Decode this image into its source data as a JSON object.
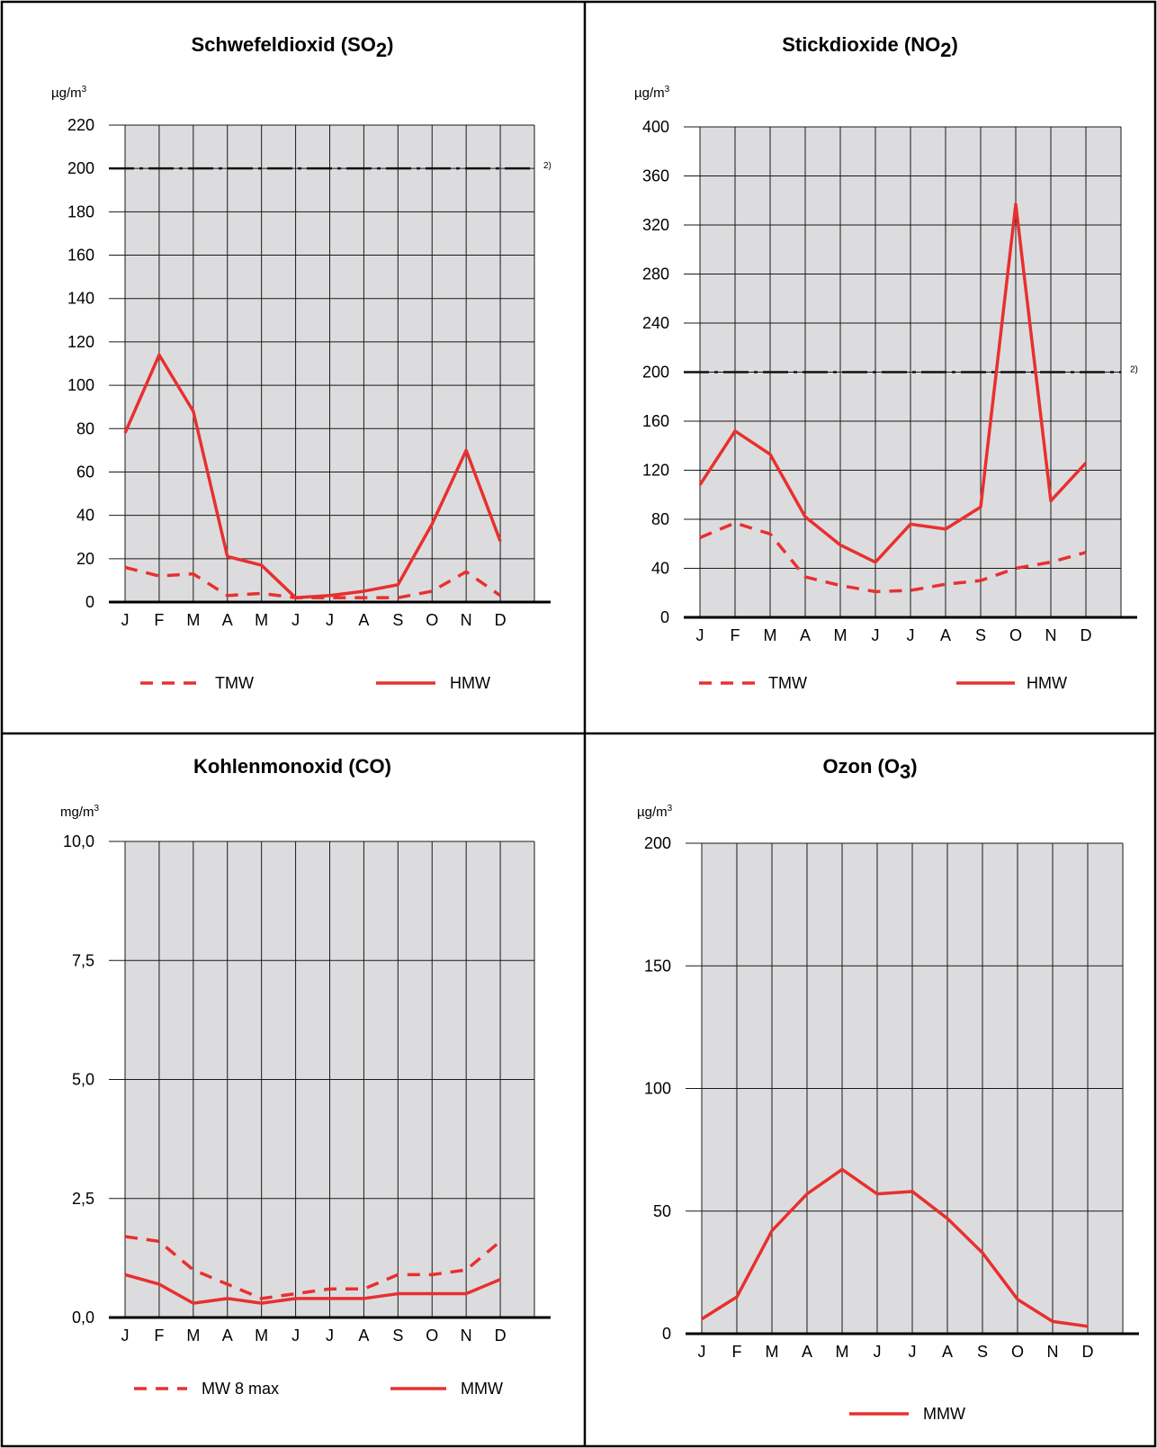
{
  "colors": {
    "series": "#e8302f",
    "plot_background": "#dcdcde",
    "gridline": "#1a1a1a",
    "limit_line": "#111111",
    "border": "#000000"
  },
  "chart_data": [
    {
      "type": "line",
      "title": {
        "main": "Schwefeldioxid (SO",
        "sub": "2",
        "close": ")"
      },
      "unit": {
        "base": "µg/m",
        "sup": "3"
      },
      "categories": [
        "J",
        "F",
        "M",
        "A",
        "M",
        "J",
        "J",
        "A",
        "S",
        "O",
        "N",
        "D"
      ],
      "ylim": [
        0,
        220
      ],
      "yticks": [
        0,
        20,
        40,
        60,
        80,
        100,
        120,
        140,
        160,
        180,
        200,
        220
      ],
      "ytick_labels": [
        "0",
        "20",
        "40",
        "60",
        "80",
        "100",
        "120",
        "140",
        "160",
        "180",
        "200",
        "220"
      ],
      "limit": {
        "value": 200,
        "label": "2)"
      },
      "series": [
        {
          "name": "TMW",
          "style": "dashed",
          "values": [
            16,
            12,
            13,
            3,
            4,
            2,
            2,
            2,
            2,
            5,
            14,
            3
          ]
        },
        {
          "name": "HMW",
          "style": "solid",
          "values": [
            78,
            114,
            88,
            21,
            17,
            2,
            3,
            5,
            8,
            36,
            70,
            28
          ]
        }
      ],
      "legend": {
        "placement": "bottom"
      },
      "grid": true
    },
    {
      "type": "line",
      "title": {
        "main": "Stickdioxide (NO",
        "sub": "2",
        "close": ")"
      },
      "unit": {
        "base": "µg/m",
        "sup": "3"
      },
      "categories": [
        "J",
        "F",
        "M",
        "A",
        "M",
        "J",
        "J",
        "A",
        "S",
        "O",
        "N",
        "D"
      ],
      "ylim": [
        0,
        400
      ],
      "yticks": [
        0,
        40,
        80,
        120,
        160,
        200,
        240,
        280,
        320,
        360,
        400
      ],
      "ytick_labels": [
        "0",
        "40",
        "80",
        "120",
        "160",
        "200",
        "240",
        "280",
        "320",
        "360",
        "400"
      ],
      "limit": {
        "value": 200,
        "label": "2)"
      },
      "series": [
        {
          "name": "TMW",
          "style": "dashed",
          "values": [
            65,
            77,
            68,
            33,
            26,
            21,
            22,
            27,
            30,
            40,
            45,
            53
          ]
        },
        {
          "name": "HMW",
          "style": "solid",
          "values": [
            108,
            152,
            133,
            82,
            59,
            45,
            76,
            72,
            90,
            337,
            95,
            126
          ]
        }
      ],
      "legend": {
        "placement": "bottom"
      },
      "grid": true
    },
    {
      "type": "line",
      "title": {
        "main": "Kohlenmonoxid (CO)",
        "sub": "",
        "close": ""
      },
      "unit": {
        "base": "mg/m",
        "sup": "3"
      },
      "categories": [
        "J",
        "F",
        "M",
        "A",
        "M",
        "J",
        "J",
        "A",
        "S",
        "O",
        "N",
        "D"
      ],
      "ylim": [
        0,
        10
      ],
      "yticks": [
        0,
        2.5,
        5,
        7.5,
        10
      ],
      "ytick_labels": [
        "0,0",
        "2,5",
        "5,0",
        "7,5",
        "10,0"
      ],
      "series": [
        {
          "name": "MW 8 max",
          "style": "dashed",
          "values": [
            1.7,
            1.6,
            1.0,
            0.7,
            0.4,
            0.5,
            0.6,
            0.6,
            0.9,
            0.9,
            1.0,
            1.6
          ]
        },
        {
          "name": "MMW",
          "style": "solid",
          "values": [
            0.9,
            0.7,
            0.3,
            0.4,
            0.3,
            0.4,
            0.4,
            0.4,
            0.5,
            0.5,
            0.5,
            0.8
          ]
        }
      ],
      "legend": {
        "placement": "bottom"
      },
      "grid": true
    },
    {
      "type": "line",
      "title": {
        "main": "Ozon (O",
        "sub": "3",
        "close": ")"
      },
      "unit": {
        "base": "µg/m",
        "sup": "3"
      },
      "categories": [
        "J",
        "F",
        "M",
        "A",
        "M",
        "J",
        "J",
        "A",
        "S",
        "O",
        "N",
        "D"
      ],
      "ylim": [
        0,
        200
      ],
      "yticks": [
        0,
        50,
        100,
        150,
        200
      ],
      "ytick_labels": [
        "0",
        "50",
        "100",
        "150",
        "200"
      ],
      "series": [
        {
          "name": "MMW",
          "style": "solid",
          "values": [
            6,
            15,
            42,
            57,
            67,
            57,
            58,
            47,
            33,
            14,
            5,
            3
          ]
        }
      ],
      "legend": {
        "placement": "bottom"
      },
      "grid": true
    }
  ]
}
